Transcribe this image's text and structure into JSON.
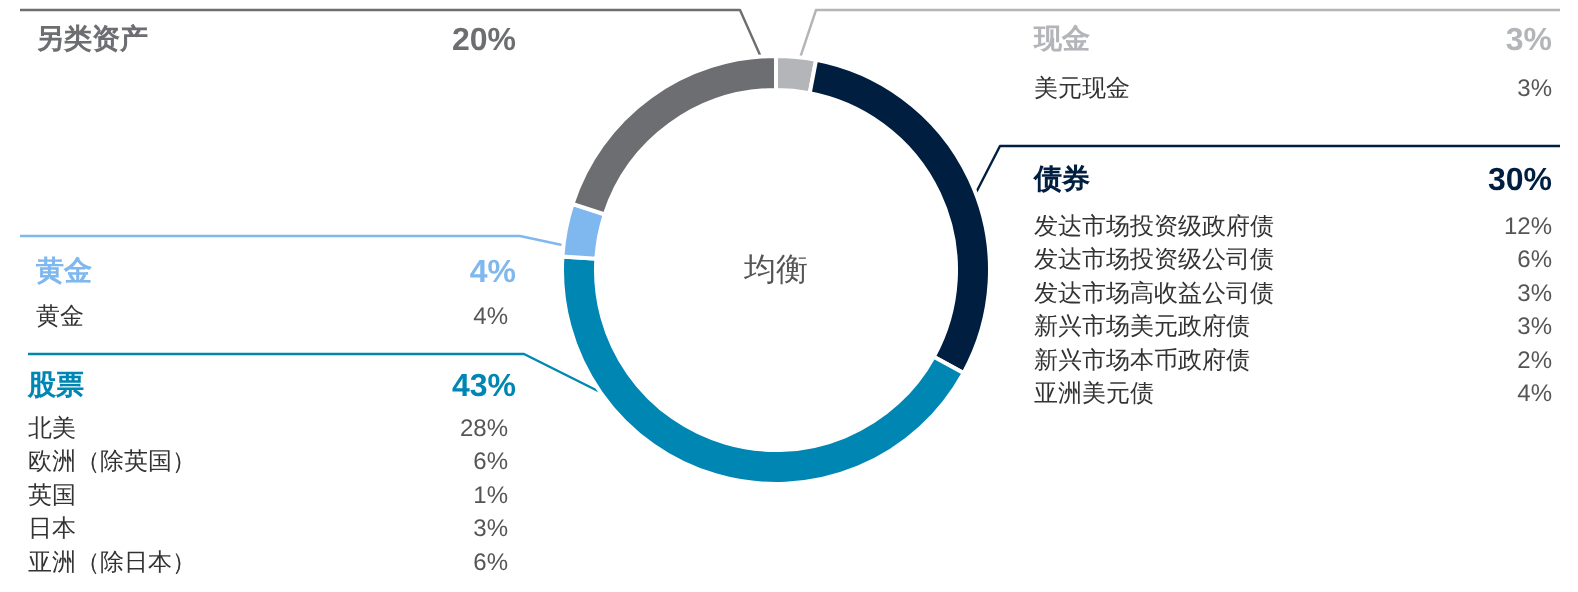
{
  "chart_data": {
    "type": "donut",
    "title": "均衡",
    "categories": [
      "现金",
      "债券",
      "股票",
      "黄金",
      "另类资产"
    ],
    "values": [
      3,
      30,
      43,
      4,
      20
    ],
    "value_labels": [
      "3%",
      "30%",
      "43%",
      "4%",
      "20%"
    ],
    "colors": [
      "#b3b5b8",
      "#001f40",
      "#0086b3",
      "#7fb8ef",
      "#6d6e71"
    ],
    "annotations": [
      {
        "text": "美元现金",
        "x": "现金"
      },
      {
        "text": "3%",
        "x": "现金"
      },
      {
        "text": "发达市场投资级政府债",
        "x": "债券"
      },
      {
        "text": "12%",
        "x": "债券"
      },
      {
        "text": "发达市场投资级公司债",
        "x": "债券"
      },
      {
        "text": "6%",
        "x": "债券"
      },
      {
        "text": "发达市场高收益公司债",
        "x": "债券"
      },
      {
        "text": "3%",
        "x": "债券"
      },
      {
        "text": "新兴市场美元政府债",
        "x": "债券"
      },
      {
        "text": "3%",
        "x": "债券"
      },
      {
        "text": "新兴市场本币政府债",
        "x": "债券"
      },
      {
        "text": "2%",
        "x": "债券"
      },
      {
        "text": "亚洲美元债",
        "x": "债券"
      },
      {
        "text": "4%",
        "x": "债券"
      },
      {
        "text": "北美",
        "x": "股票"
      },
      {
        "text": "28%",
        "x": "股票"
      },
      {
        "text": "欧洲（除英国）",
        "x": "股票"
      },
      {
        "text": "6%",
        "x": "股票"
      },
      {
        "text": "英国",
        "x": "股票"
      },
      {
        "text": "1%",
        "x": "股票"
      },
      {
        "text": "日本",
        "x": "股票"
      },
      {
        "text": "3%",
        "x": "股票"
      },
      {
        "text": "亚洲（除日本）",
        "x": "股票"
      },
      {
        "text": "6%",
        "x": "股票"
      },
      {
        "text": "黄金",
        "x": "黄金"
      },
      {
        "text": "4%",
        "x": "黄金"
      }
    ]
  }
}
